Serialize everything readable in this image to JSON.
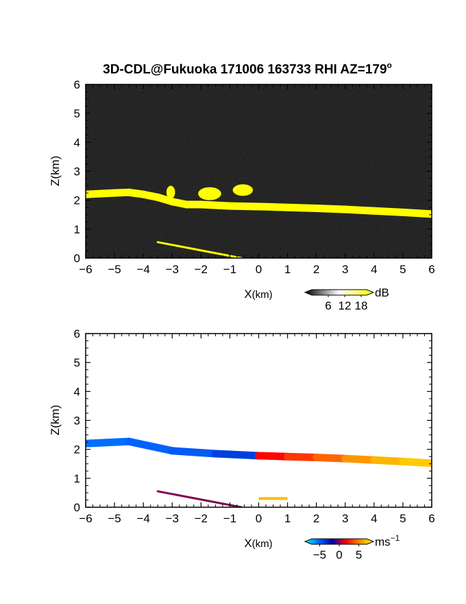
{
  "figure": {
    "title": "3D-CDL@Fukuoka 171006 163733 RHI AZ=179",
    "title_superscript": "o"
  },
  "chart_data": [
    {
      "type": "heatmap",
      "field": "backscatter",
      "xlabel_main": "X",
      "xlabel_unit": "(km)",
      "ylabel": "Z(km)",
      "xlim": [
        -6,
        6
      ],
      "ylim": [
        0,
        6
      ],
      "xticks": [
        "-6",
        "-5",
        "-4",
        "-3",
        "-2",
        "-1",
        "0",
        "1",
        "2",
        "3",
        "4",
        "5",
        "6"
      ],
      "yticks": [
        "0",
        "1",
        "2",
        "3",
        "4",
        "5",
        "6"
      ],
      "background": "noise",
      "colorbar": {
        "unit": "dB",
        "ticks": [
          "6",
          "12",
          "18"
        ],
        "range": [
          0,
          20
        ],
        "colors": [
          "#000000",
          "#ffffff",
          "#ffff00"
        ]
      },
      "features": [
        {
          "name": "cloud-layer",
          "x": [
            -6,
            -5,
            -4.5,
            -4,
            -3.5,
            -3,
            -2.5,
            -2,
            -1,
            0,
            1,
            2,
            3,
            4,
            5,
            6
          ],
          "z": [
            2.2,
            2.25,
            2.27,
            2.2,
            2.1,
            1.95,
            1.85,
            1.85,
            1.8,
            1.78,
            1.75,
            1.72,
            1.68,
            1.63,
            1.58,
            1.52
          ],
          "value_db": 20
        },
        {
          "name": "cloud-cell-1",
          "x": [
            -3.2,
            -2.9
          ],
          "z": [
            2.05,
            2.5
          ],
          "value_db": 20
        },
        {
          "name": "cloud-cell-2",
          "x": [
            -2.1,
            -1.3
          ],
          "z": [
            2.0,
            2.45
          ],
          "value_db": 20
        },
        {
          "name": "cloud-cell-3",
          "x": [
            -0.9,
            -0.2
          ],
          "z": [
            2.15,
            2.55
          ],
          "value_db": 20
        },
        {
          "name": "low-streak",
          "x": [
            -3.5,
            -0.6
          ],
          "z": [
            0.55,
            0.0
          ],
          "value_db": 20
        }
      ]
    },
    {
      "type": "heatmap",
      "field": "doppler-velocity",
      "xlabel_main": "X",
      "xlabel_unit": "(km)",
      "ylabel": "Z(km)",
      "xlim": [
        -6,
        6
      ],
      "ylim": [
        0,
        6
      ],
      "xticks": [
        "-6",
        "-5",
        "-4",
        "-3",
        "-2",
        "-1",
        "0",
        "1",
        "2",
        "3",
        "4",
        "5",
        "6"
      ],
      "yticks": [
        "0",
        "1",
        "2",
        "3",
        "4",
        "5",
        "6"
      ],
      "colorbar": {
        "unit": "ms",
        "unit_exponent": "−1",
        "ticks": [
          "−5",
          "0",
          "5"
        ],
        "range": [
          -7,
          7
        ],
        "colors": [
          "#00ffff",
          "#0066ff",
          "#0000aa",
          "#ff0000",
          "#ff8800",
          "#ffff00"
        ]
      },
      "features": [
        {
          "name": "cloud-layer-approaching",
          "x": [
            -6,
            -4.5,
            -3,
            -1.5,
            0
          ],
          "z": [
            2.2,
            2.27,
            1.95,
            1.85,
            1.78
          ],
          "velocity_ms": [
            -4.5,
            -4.2,
            -4.0,
            -3.8,
            -2.5
          ]
        },
        {
          "name": "cloud-layer-receding",
          "x": [
            0,
            1,
            2,
            3,
            4,
            5,
            6
          ],
          "z": [
            1.78,
            1.75,
            1.72,
            1.68,
            1.63,
            1.58,
            1.52
          ],
          "velocity_ms": [
            1.0,
            2.0,
            3.0,
            4.0,
            5.0,
            5.5,
            6.0
          ]
        },
        {
          "name": "low-streak",
          "x": [
            -3.5,
            -0.6
          ],
          "z": [
            0.55,
            0.0
          ],
          "velocity_ms": [
            -1.0,
            1.0
          ]
        },
        {
          "name": "near-surface-patch",
          "x": [
            0,
            1.0
          ],
          "z": [
            0.25,
            0.35
          ],
          "velocity_ms": 5.5
        }
      ]
    }
  ]
}
